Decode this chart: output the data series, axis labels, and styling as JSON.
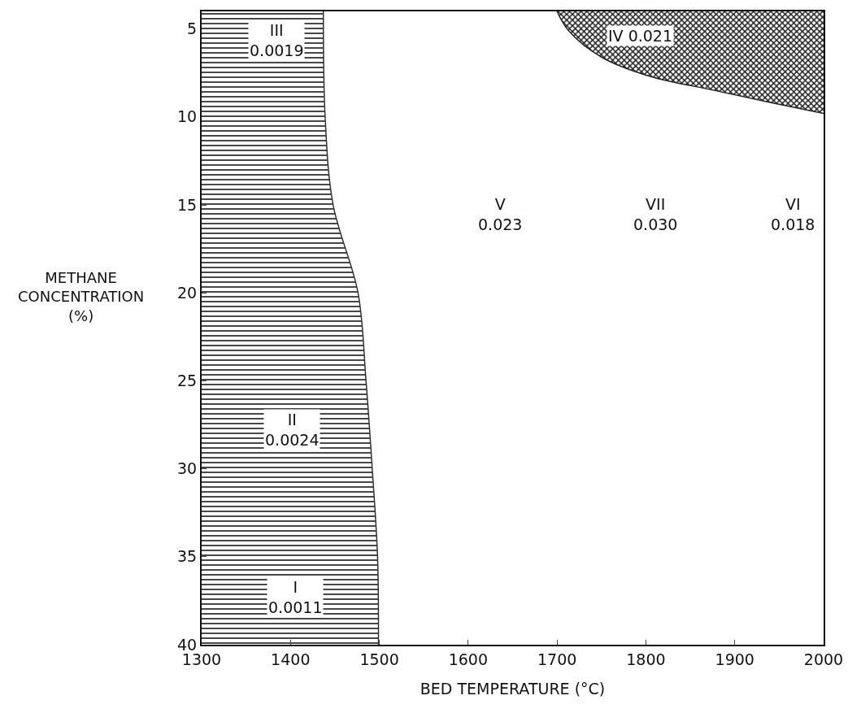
{
  "chart_data": {
    "type": "area",
    "xlabel": "BED TEMPERATURE (°C)",
    "ylabel": "METHANE\nCONCENTRATION\n(%)",
    "xlim": [
      1300,
      2000
    ],
    "xticks": [
      1300,
      1400,
      1500,
      1600,
      1700,
      1800,
      1900,
      2000
    ],
    "ylim": [
      40,
      4
    ],
    "yticks": [
      5,
      10,
      15,
      20,
      25,
      30,
      35,
      40
    ],
    "grid": false,
    "series": [
      {
        "color": "#333333",
        "x": [
          1437,
          1439,
          1448,
          1476,
          1485,
          1492,
          1498,
          1499
        ],
        "values": [
          4,
          10,
          15,
          20,
          25,
          30,
          35,
          40
        ]
      },
      {
        "color": "#222222",
        "x": [
          1700,
          1713,
          1750,
          1805,
          1878,
          1942,
          2000
        ],
        "values": [
          4,
          5.1,
          6.6,
          7.7,
          8.5,
          9.2,
          9.8
        ]
      }
    ],
    "annotations": [
      "III\n0.0019",
      "IV 0.021",
      "V\n0.023",
      "VII\n0.030",
      "VI\n0.018",
      "II\n0.0024",
      "I\n0.0011"
    ]
  }
}
